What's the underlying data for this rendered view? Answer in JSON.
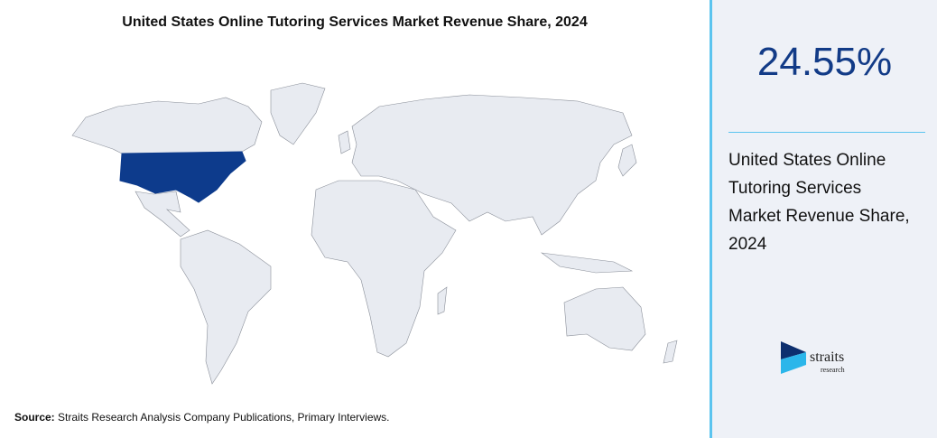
{
  "title": "United States Online Tutoring Services Market Revenue Share, 2024",
  "highlight": {
    "value": "24.55%",
    "label": "United States Online Tutoring Services Market Revenue Share, 2024"
  },
  "source": {
    "label": "Source:",
    "text": "Straits Research Analysis Company Publications, Primary Interviews."
  },
  "logo": {
    "name": "straits",
    "sub": "research"
  }
}
